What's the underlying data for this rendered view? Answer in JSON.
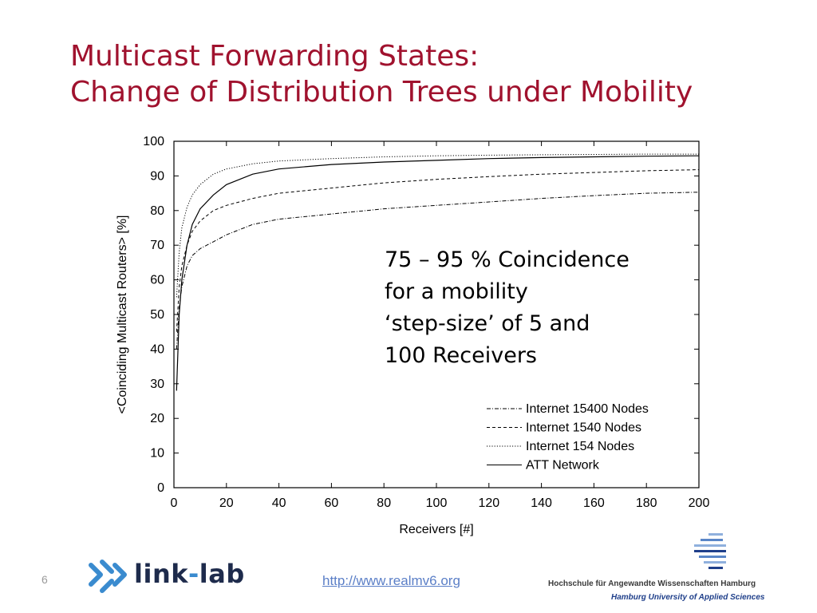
{
  "slide": {
    "title_line1": "Multicast Forwarding States:",
    "title_line2": "Change of Distribution Trees under Mobility",
    "annotation_lines": [
      "75 – 95 % Coincidence",
      "for a mobility",
      "‘step-size’ of 5 and",
      "100 Receivers"
    ],
    "page_number": "6",
    "url": "http://www.realmv6.org",
    "logo_linklab": {
      "part1": "link",
      "dash": "-",
      "part2": "lab"
    },
    "logo_haw": {
      "line1": "Hochschule für Angewandte Wissenschaften Hamburg",
      "line2": "Hamburg University of Applied Sciences"
    },
    "colors": {
      "title": "#a0122e",
      "url": "#5b7fc7",
      "linklab_dark": "#1e2b4c",
      "linklab_blue": "#3a8bcf",
      "haw_blue": "#1f3f8a"
    }
  },
  "chart_data": {
    "type": "line",
    "xlabel": "Receivers [#]",
    "ylabel": "<Coinciding Multicast Routers> [%]",
    "xlim": [
      0,
      200
    ],
    "ylim": [
      0,
      100
    ],
    "xticks": [
      0,
      20,
      40,
      60,
      80,
      100,
      120,
      140,
      160,
      180,
      200
    ],
    "yticks": [
      0,
      10,
      20,
      30,
      40,
      50,
      60,
      70,
      80,
      90,
      100
    ],
    "grid": false,
    "legend_position": "bottom-right",
    "series": [
      {
        "name": "Internet 15400 Nodes",
        "style": "dash-dot",
        "x": [
          1,
          2,
          3,
          5,
          7,
          10,
          15,
          20,
          30,
          40,
          60,
          80,
          100,
          120,
          140,
          160,
          180,
          200
        ],
        "y": [
          40,
          52,
          58,
          64,
          67,
          69,
          71,
          73,
          76,
          77.5,
          79,
          80.5,
          81.5,
          82.5,
          83.5,
          84.3,
          85,
          85.3
        ]
      },
      {
        "name": "Internet 1540 Nodes",
        "style": "dashed",
        "x": [
          1,
          2,
          3,
          5,
          7,
          10,
          15,
          20,
          30,
          40,
          60,
          80,
          100,
          120,
          140,
          160,
          180,
          200
        ],
        "y": [
          45,
          58,
          64,
          70,
          74,
          77,
          80,
          81.5,
          83.5,
          85,
          86.5,
          88,
          89,
          89.8,
          90.5,
          91,
          91.5,
          91.8
        ]
      },
      {
        "name": "Internet 154 Nodes",
        "style": "dotted",
        "x": [
          1,
          2,
          3,
          5,
          7,
          10,
          15,
          20,
          30,
          40,
          60,
          80,
          100,
          120,
          140,
          160,
          180,
          200
        ],
        "y": [
          55,
          68,
          75,
          81,
          84.5,
          87.5,
          90.5,
          92,
          93.5,
          94.3,
          95,
          95.5,
          95.8,
          96,
          96.1,
          96.2,
          96.3,
          96.3
        ]
      },
      {
        "name": "ATT Network",
        "style": "solid",
        "x": [
          1,
          2,
          3,
          5,
          7,
          10,
          15,
          20,
          30,
          40,
          60,
          80,
          100,
          120,
          140,
          160,
          180,
          200
        ],
        "y": [
          28,
          50,
          60,
          70,
          76,
          80.5,
          84.5,
          87.5,
          90.5,
          92,
          93.3,
          94,
          94.5,
          95,
          95.3,
          95.5,
          95.7,
          95.8
        ]
      }
    ]
  }
}
